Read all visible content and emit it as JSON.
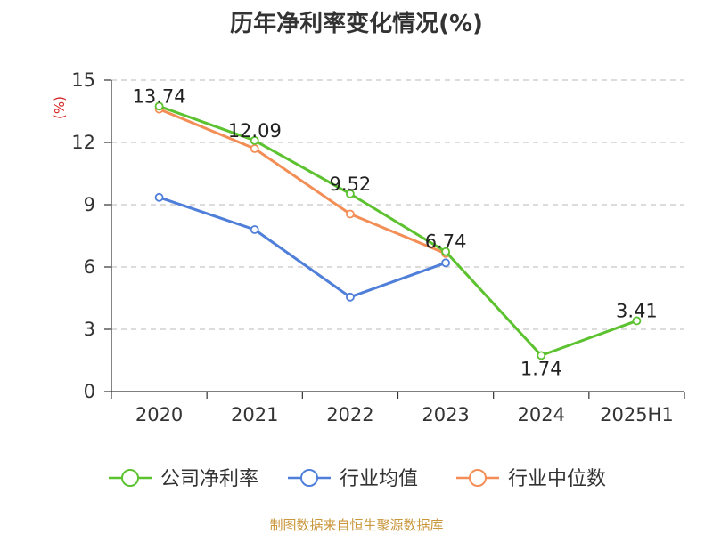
{
  "chart_data": {
    "type": "line",
    "title": "历年净利率变化情况(%)",
    "unit_label": "(%)",
    "categories": [
      "2020",
      "2021",
      "2022",
      "2023",
      "2024",
      "2025H1"
    ],
    "ylim": [
      0,
      15
    ],
    "yticks": [
      "0",
      "3",
      "6",
      "9",
      "12",
      "15"
    ],
    "grid": true,
    "legend_position": "bottom",
    "series": [
      {
        "name": "公司净利率",
        "color": "#5cc230",
        "values": [
          13.74,
          12.09,
          9.52,
          6.74,
          1.74,
          3.41
        ],
        "labels": [
          "13.74",
          "12.09",
          "9.52",
          "6.74",
          "1.74",
          "3.41"
        ]
      },
      {
        "name": "行业均值",
        "color": "#4f7fd9",
        "values": [
          9.35,
          7.8,
          4.55,
          6.2,
          null,
          null
        ]
      },
      {
        "name": "行业中位数",
        "color": "#f28e56",
        "values": [
          13.6,
          11.7,
          8.55,
          6.65,
          null,
          null
        ]
      }
    ]
  },
  "footer": {
    "source": "制图数据来自恒生聚源数据库"
  }
}
